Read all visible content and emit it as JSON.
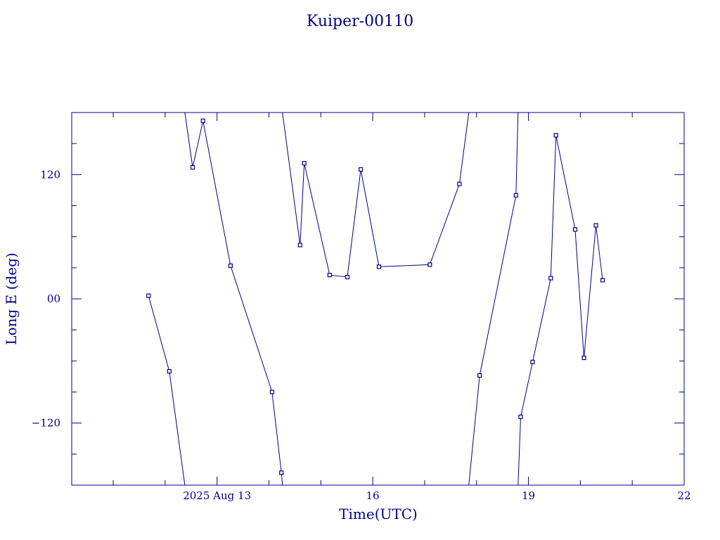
{
  "chart_data": {
    "type": "line",
    "title": "Kuiper-00110",
    "xlabel": "Time(UTC)",
    "ylabel": "Long E (deg)",
    "x_unit": "days (Aug 2025)",
    "xlim": [
      10.2,
      22.0
    ],
    "ylim": [
      -180,
      180
    ],
    "x_ticks": [
      {
        "value": 13,
        "label": "2025 Aug 13"
      },
      {
        "value": 16,
        "label": "16"
      },
      {
        "value": 19,
        "label": "19"
      },
      {
        "value": 22,
        "label": "22"
      }
    ],
    "y_ticks": [
      {
        "value": 120,
        "label": "120"
      },
      {
        "value": 0,
        "label": "00"
      },
      {
        "value": -120,
        "label": "−120"
      }
    ],
    "color": "#00008b",
    "markers": "small squares",
    "grid": false,
    "series": [
      {
        "points": [
          [
            11.68,
            3
          ],
          [
            12.08,
            -70
          ],
          [
            12.38,
            -180
          ]
        ]
      },
      {
        "points": [
          [
            12.38,
            180
          ],
          [
            12.53,
            127
          ],
          [
            12.73,
            172
          ],
          [
            13.26,
            32
          ],
          [
            14.06,
            -90
          ],
          [
            14.24,
            -168
          ],
          [
            14.26,
            -180
          ]
        ]
      },
      {
        "points": [
          [
            14.26,
            180
          ],
          [
            14.6,
            52
          ],
          [
            14.68,
            131
          ],
          [
            15.17,
            23
          ],
          [
            15.51,
            21
          ],
          [
            15.77,
            125
          ],
          [
            16.12,
            31
          ],
          [
            17.1,
            33
          ],
          [
            17.67,
            111
          ],
          [
            17.85,
            180
          ]
        ]
      },
      {
        "points": [
          [
            17.85,
            -180
          ],
          [
            18.06,
            -74
          ],
          [
            18.76,
            100
          ],
          [
            18.8,
            180
          ]
        ]
      },
      {
        "points": [
          [
            18.8,
            -180
          ],
          [
            18.85,
            -114
          ],
          [
            19.08,
            -61
          ],
          [
            19.43,
            20
          ],
          [
            19.53,
            158
          ],
          [
            19.9,
            67
          ],
          [
            20.07,
            -57
          ],
          [
            20.3,
            71
          ],
          [
            20.43,
            18
          ]
        ]
      }
    ]
  }
}
